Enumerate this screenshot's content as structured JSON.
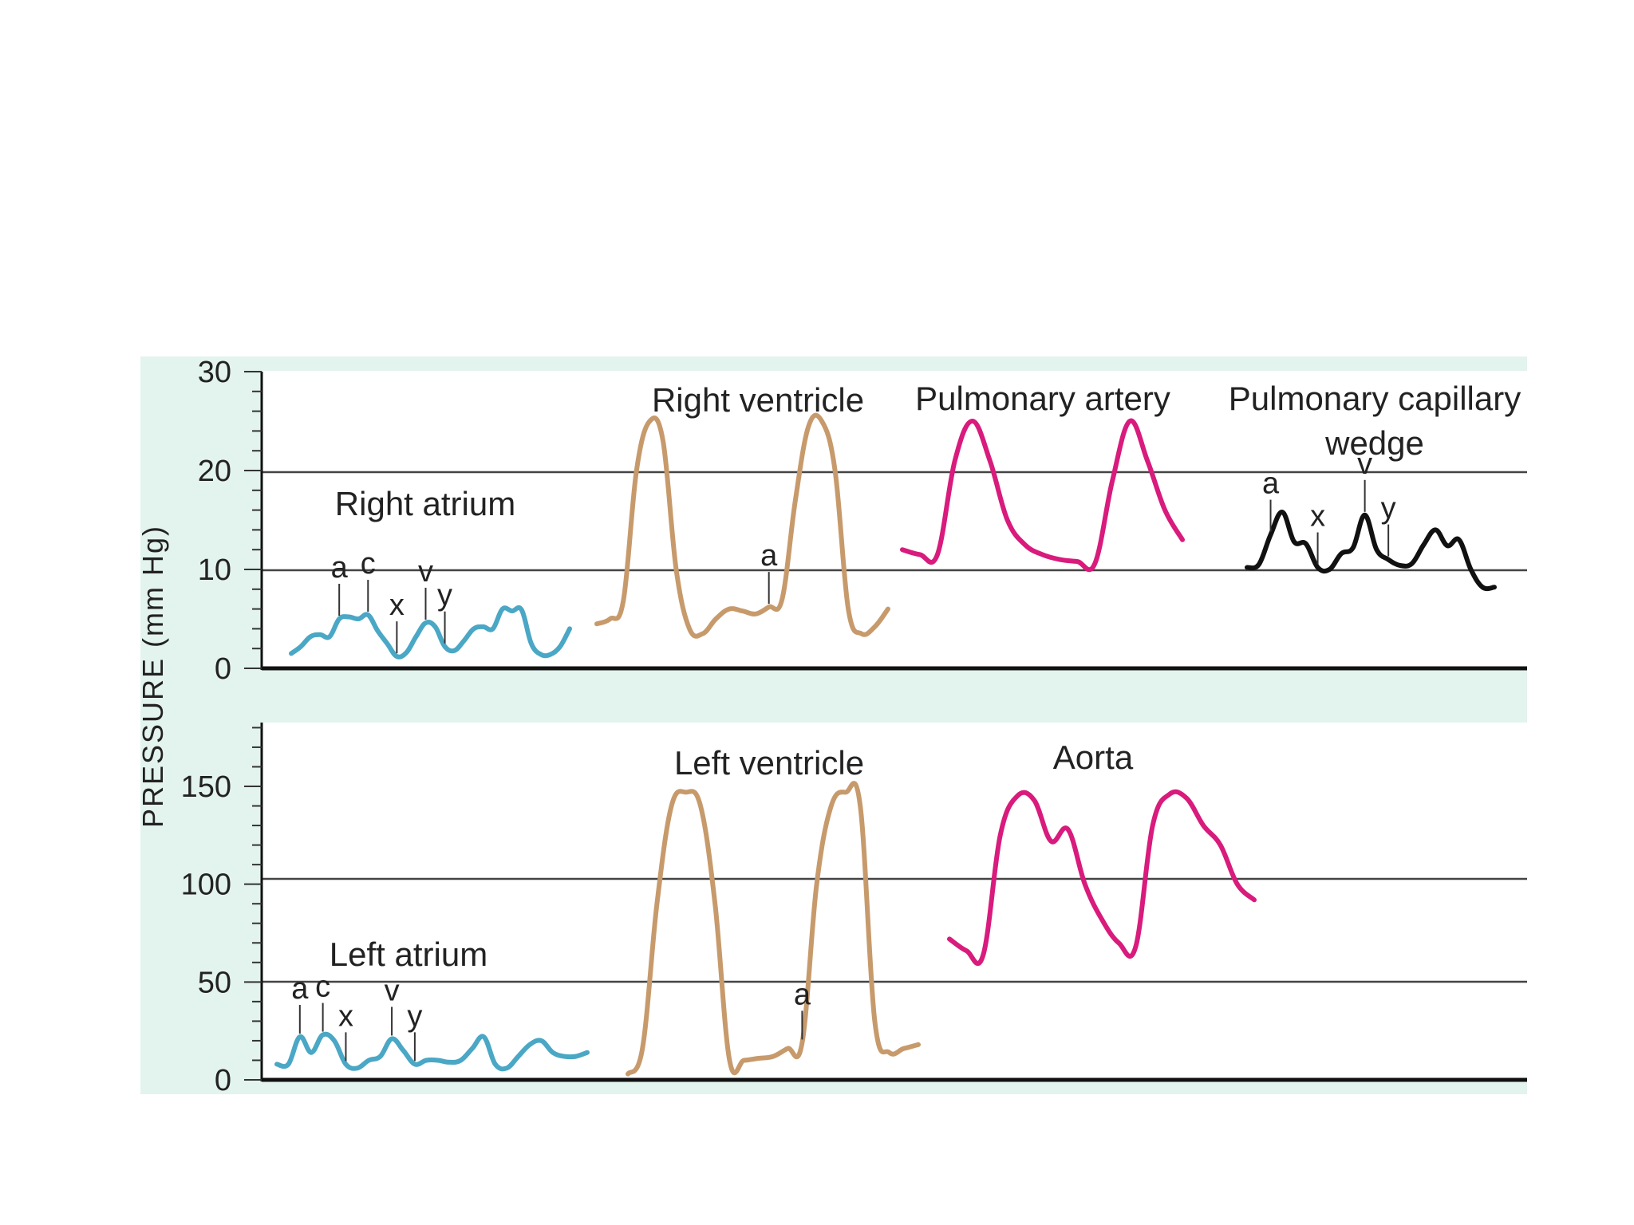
{
  "chart_data": [
    {
      "type": "line",
      "id": "top",
      "ylabel": "PRESSURE (mm Hg)",
      "ylim": [
        0,
        30
      ],
      "yticks": [
        0,
        10,
        20,
        30
      ],
      "gridlines": [
        10,
        20
      ],
      "series": [
        {
          "name": "Right atrium",
          "color": "#4aa7c5",
          "values": [
            1.5,
            2.2,
            3.2,
            3.4,
            3.2,
            5.0,
            5.2,
            5.0,
            5.4,
            3.8,
            2.5,
            1.2,
            1.6,
            3.2,
            4.6,
            4.2,
            2.2,
            1.8,
            2.8,
            4.0,
            4.2,
            4.0,
            6.0,
            5.8,
            5.9,
            2.5,
            1.4,
            1.4,
            2.2,
            4.0
          ],
          "markers": [
            {
              "label": "a",
              "i": 5
            },
            {
              "label": "c",
              "i": 8
            },
            {
              "label": "x",
              "i": 11
            },
            {
              "label": "v",
              "i": 14
            },
            {
              "label": "y",
              "i": 16
            }
          ]
        },
        {
          "name": "Right ventricle",
          "color": "#c79a6c",
          "values": [
            4.5,
            5.0,
            6.8,
            20.0,
            25.0,
            23.0,
            10.0,
            4.0,
            3.5,
            5.0,
            6.0,
            5.8,
            5.5,
            6.2,
            7.0,
            17.0,
            24.5,
            25.0,
            20.0,
            6.0,
            3.5,
            4.2,
            6.0
          ],
          "markers": [
            {
              "label": "a",
              "i": 13
            }
          ]
        },
        {
          "name": "Pulmonary artery",
          "color": "#d81b7c",
          "values": [
            12.0,
            11.5,
            11.5,
            21.0,
            25.0,
            21.0,
            15.0,
            12.5,
            11.5,
            11.0,
            10.8,
            10.6,
            19.0,
            25.0,
            21.0,
            16.0,
            13.0
          ],
          "markers": []
        },
        {
          "name": "Pulmonary capillary wedge",
          "color": "#111111",
          "values": [
            10.2,
            10.5,
            13.5,
            15.8,
            12.8,
            12.6,
            10.2,
            10.0,
            11.6,
            12.2,
            15.5,
            12.0,
            11.0,
            10.4,
            10.6,
            12.5,
            14.0,
            12.4,
            13.0,
            10.0,
            8.2,
            8.2
          ],
          "markers": [
            {
              "label": "a",
              "i": 2
            },
            {
              "label": "x",
              "i": 6
            },
            {
              "label": "v",
              "i": 10
            },
            {
              "label": "y",
              "i": 12
            }
          ]
        }
      ]
    },
    {
      "type": "line",
      "id": "bottom",
      "ylabel": "PRESSURE (mm Hg)",
      "ylim": [
        0,
        180
      ],
      "yticks": [
        0,
        50,
        100,
        150
      ],
      "gridlines": [
        50,
        100
      ],
      "series": [
        {
          "name": "Left atrium",
          "color": "#4aa7c5",
          "values": [
            8,
            8,
            22,
            14,
            23,
            20,
            8,
            6,
            10,
            12,
            21,
            15,
            8,
            10,
            10,
            9,
            10,
            16,
            22,
            8,
            6,
            12,
            18,
            20,
            14,
            12,
            12,
            14
          ],
          "markers": [
            {
              "label": "a",
              "i": 2
            },
            {
              "label": "c",
              "i": 4
            },
            {
              "label": "x",
              "i": 6
            },
            {
              "label": "v",
              "i": 10
            },
            {
              "label": "y",
              "i": 12
            }
          ]
        },
        {
          "name": "Left ventricle",
          "color": "#c79a6c",
          "values": [
            3,
            16,
            90,
            140,
            147,
            140,
            90,
            10,
            10,
            11,
            12,
            16,
            19,
            100,
            140,
            147,
            140,
            30,
            14,
            16,
            18
          ],
          "markers": [
            {
              "label": "a",
              "i": 12
            }
          ]
        },
        {
          "name": "Aorta",
          "color": "#d81b7c",
          "values": [
            72,
            66,
            64,
            125,
            145,
            143,
            122,
            128,
            100,
            82,
            70,
            68,
            130,
            146,
            144,
            130,
            120,
            100,
            92
          ],
          "markers": []
        }
      ]
    }
  ]
}
